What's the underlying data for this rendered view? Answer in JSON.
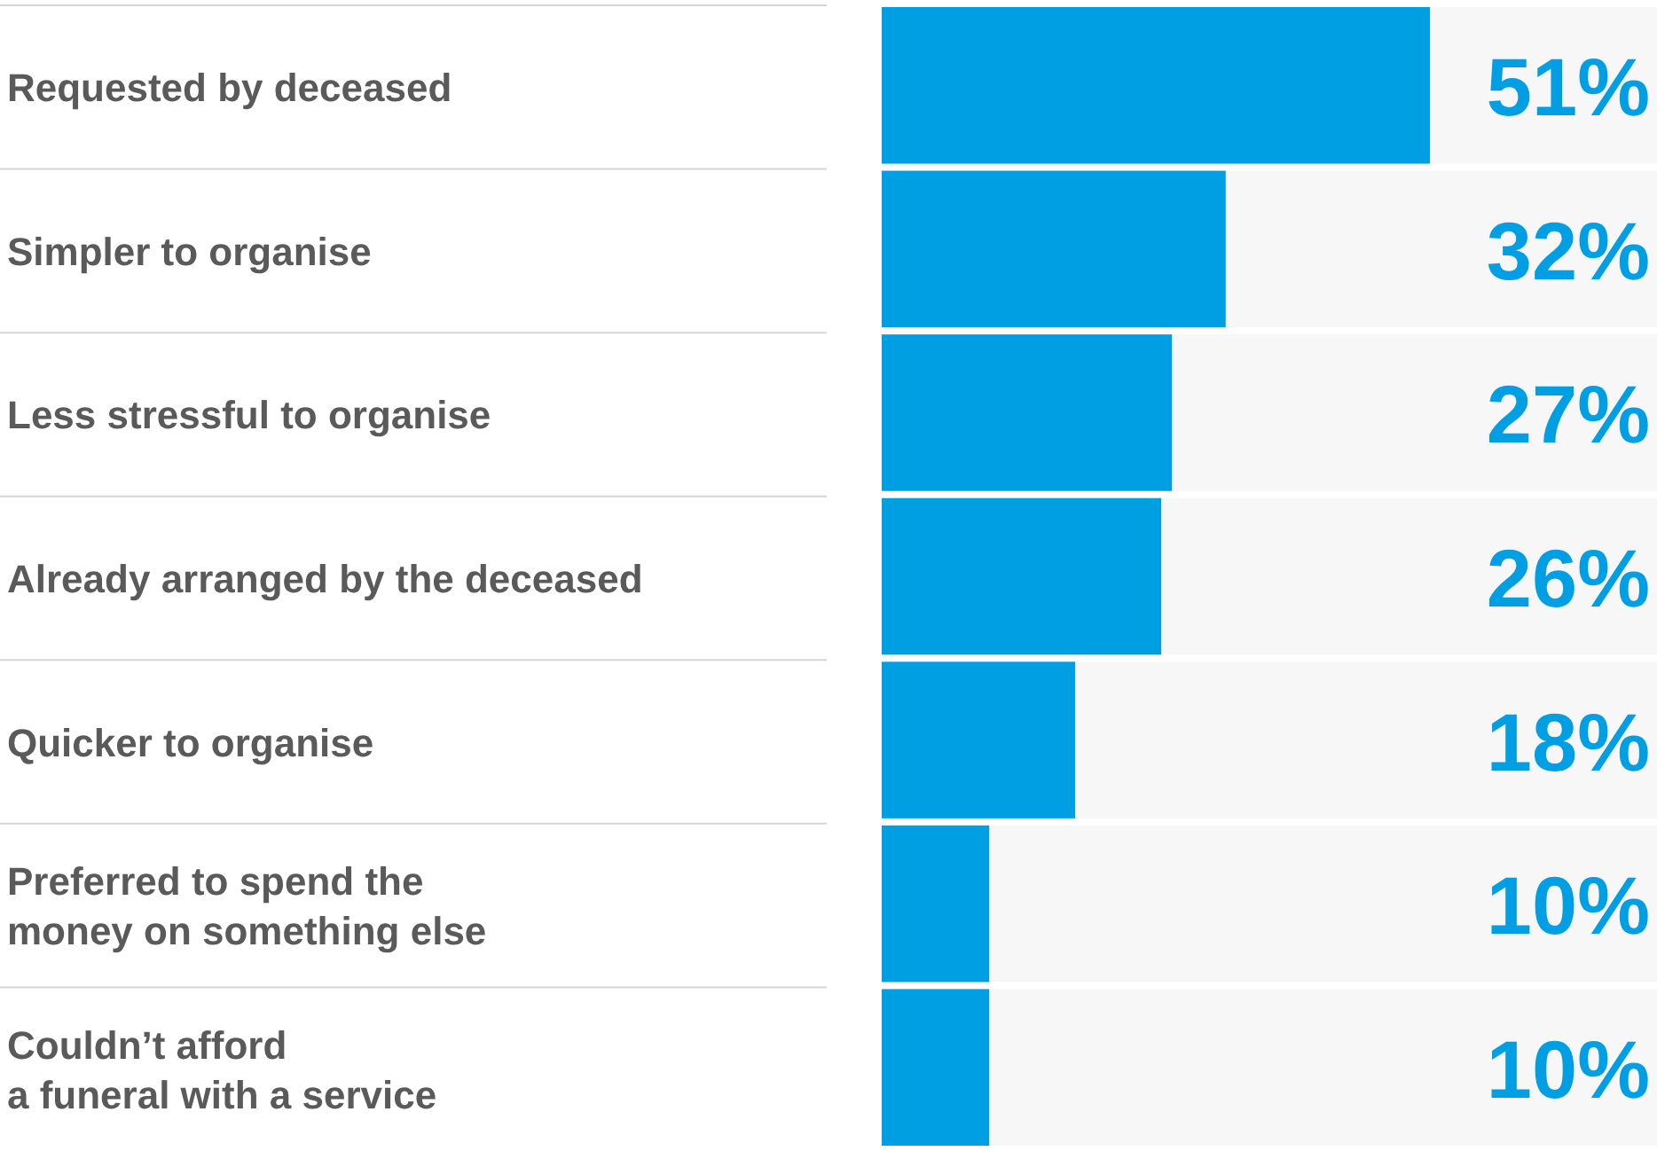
{
  "chart_data": {
    "type": "bar",
    "orientation": "horizontal",
    "categories": [
      "Requested by deceased",
      "Simpler to organise",
      "Less stressful to organise",
      "Already arranged by the deceased",
      "Quicker to organise",
      "Preferred to spend the\nmoney on something else",
      "Couldn’t afford\na funeral with a service"
    ],
    "values": [
      51,
      32,
      27,
      26,
      18,
      10,
      10
    ],
    "value_labels": [
      "51%",
      "32%",
      "27%",
      "26%",
      "18%",
      "10%",
      "10%"
    ],
    "color": "#009fe3",
    "xlim": [
      0,
      51
    ]
  }
}
